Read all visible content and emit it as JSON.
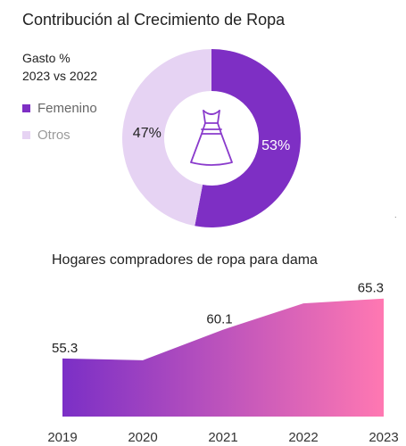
{
  "chart_data": [
    {
      "type": "pie",
      "variant": "donut",
      "title": "Contribución al Crecimiento de Ropa",
      "subtitle_lines": [
        "Gasto %",
        "2023 vs 2022"
      ],
      "slices": [
        {
          "name": "Femenino",
          "value": 53,
          "label": "53%",
          "color": "#7e2fc4"
        },
        {
          "name": "Otros",
          "value": 47,
          "label": "47%",
          "color": "#e6d3f3"
        }
      ],
      "center_icon": "dress-icon",
      "legend_position": "left"
    },
    {
      "type": "area",
      "title": "Hogares compradores de ropa para dama",
      "categories": [
        "2019",
        "2020",
        "2021",
        "2022",
        "2023"
      ],
      "values": [
        55.3,
        55.0,
        60.1,
        64.5,
        65.3
      ],
      "data_labels": [
        {
          "index": 0,
          "text": "55.3"
        },
        {
          "index": 2,
          "text": "60.1"
        },
        {
          "index": 4,
          "text": "65.3"
        }
      ],
      "ylim": [
        45.6,
        66.0
      ],
      "gradient_colors": [
        "#7b2fc6",
        "#ff78b2"
      ],
      "grid": false
    }
  ]
}
